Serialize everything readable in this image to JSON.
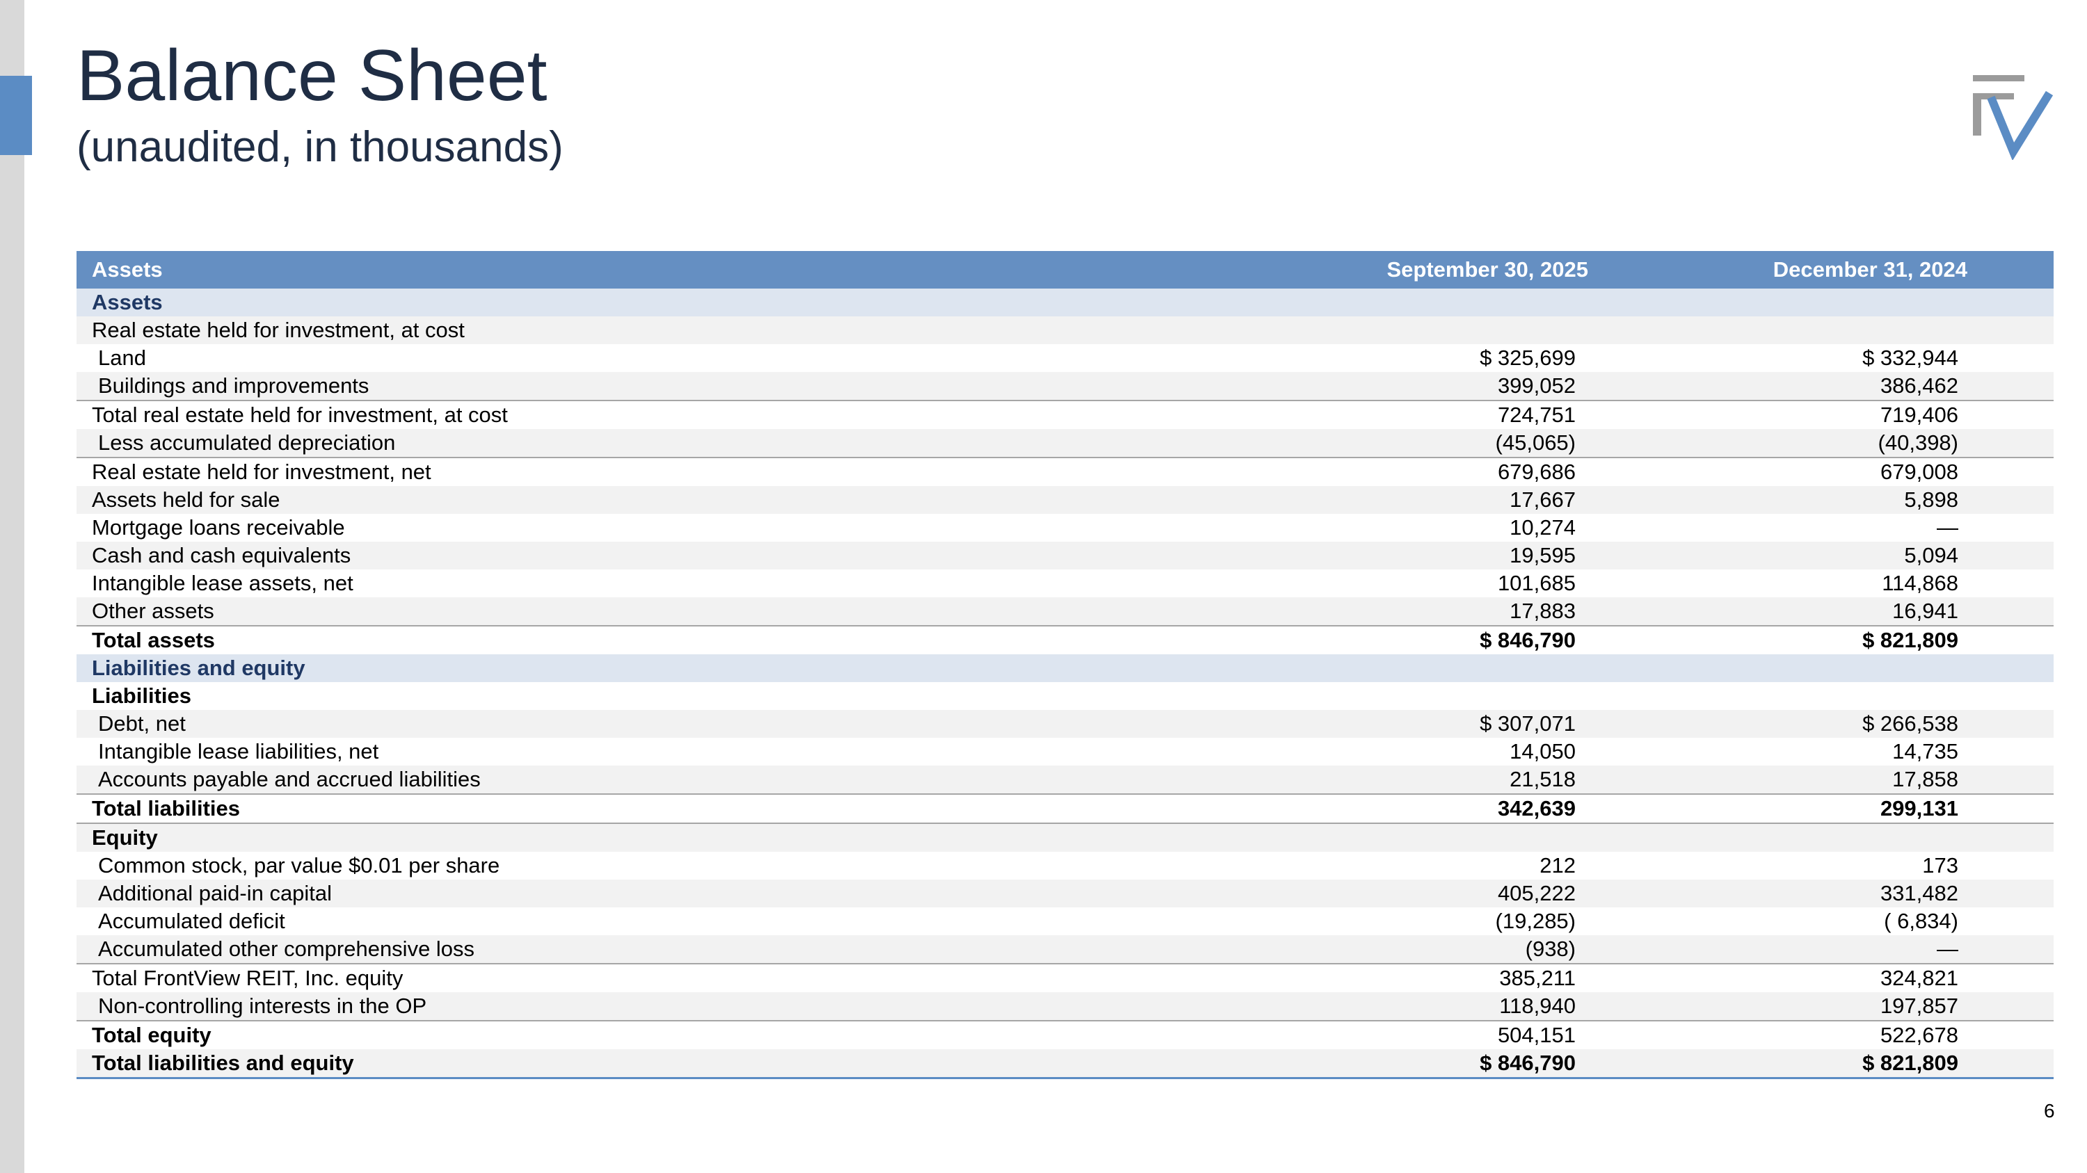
{
  "header": {
    "title": "Balance Sheet",
    "subtitle": "(unaudited, in thousands)"
  },
  "table": {
    "columns": [
      "Assets",
      "September 30, 2025",
      "December 31, 2024"
    ],
    "rows": [
      [
        "Assets"
      ],
      [
        "Real estate held for investment, at cost"
      ],
      [
        "Land",
        "$ 325,699",
        "$ 332,944"
      ],
      [
        "Buildings and improvements",
        "399,052",
        "386,462"
      ],
      [
        "Total real estate held for investment, at cost",
        "724,751",
        "719,406"
      ],
      [
        "Less accumulated depreciation",
        "(45,065)",
        "(40,398)"
      ],
      [
        "Real estate held for investment, net",
        "679,686",
        "679,008"
      ],
      [
        "Assets held for sale",
        "17,667",
        "5,898"
      ],
      [
        "Mortgage loans receivable",
        "10,274",
        "—"
      ],
      [
        "Cash and cash equivalents",
        "19,595",
        "5,094"
      ],
      [
        "Intangible lease assets, net",
        "101,685",
        "114,868"
      ],
      [
        "Other assets",
        "17,883",
        "16,941"
      ],
      [
        "Total assets",
        "$ 846,790",
        "$ 821,809"
      ],
      [
        "Liabilities and equity"
      ],
      [
        "Liabilities"
      ],
      [
        "Debt, net",
        "$ 307,071",
        "$ 266,538"
      ],
      [
        "Intangible lease liabilities, net",
        "14,050",
        "14,735"
      ],
      [
        "Accounts payable and accrued liabilities",
        "21,518",
        "17,858"
      ],
      [
        "Total liabilities",
        "342,639",
        "299,131"
      ],
      [
        "Equity"
      ],
      [
        "Common stock, par value $0.01 per share",
        "212",
        "173"
      ],
      [
        "Additional paid-in capital",
        "405,222",
        "331,482"
      ],
      [
        "Accumulated deficit",
        "(19,285)",
        "( 6,834)"
      ],
      [
        "Accumulated other comprehensive loss",
        "(938)",
        "—"
      ],
      [
        "Total FrontView REIT, Inc. equity",
        "385,211",
        "324,821"
      ],
      [
        "Non-controlling interests in the OP",
        "118,940",
        "197,857"
      ],
      [
        "Total equity",
        "504,151",
        "522,678"
      ],
      [
        "Total liabilities and equity",
        "$ 846,790",
        "$ 821,809"
      ]
    ]
  },
  "page_number": "6"
}
